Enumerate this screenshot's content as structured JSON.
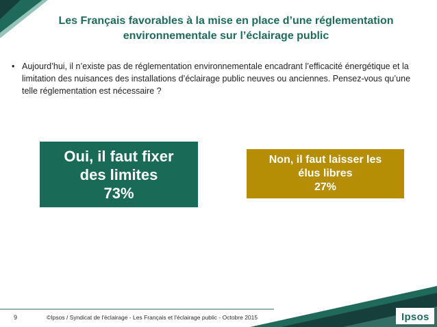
{
  "title": {
    "line1": "Les Français favorables à la mise en place d’une réglementation",
    "line2": "environnementale sur l’éclairage public"
  },
  "question": {
    "bullet": "•",
    "lines": [
      "Aujourd’hui, il n’existe pas de réglementation environnementale encadrant l’efficacité énergétique et la",
      "limitation des nuisances des installations d’éclairage public neuves ou anciennes. Pensez-vous qu’une",
      "telle réglementation est nécessaire ?"
    ]
  },
  "answers": {
    "yes": {
      "line1": "Oui, il faut fixer",
      "line2": "des limites",
      "value": "73%",
      "color": "#1a6a58"
    },
    "no": {
      "line1": "Non, il faut laisser les",
      "line2": "élus libres",
      "value": "27%",
      "color": "#b58e06"
    }
  },
  "footer": {
    "page_number": "9",
    "text": "©Ipsos / Syndicat de l'éclairage - Les Français et l'éclairage public - Octobre 2015",
    "logo": "Ipsos"
  },
  "colors": {
    "brand_green": "#1e6b5c",
    "dark_teal": "#163f3c"
  }
}
